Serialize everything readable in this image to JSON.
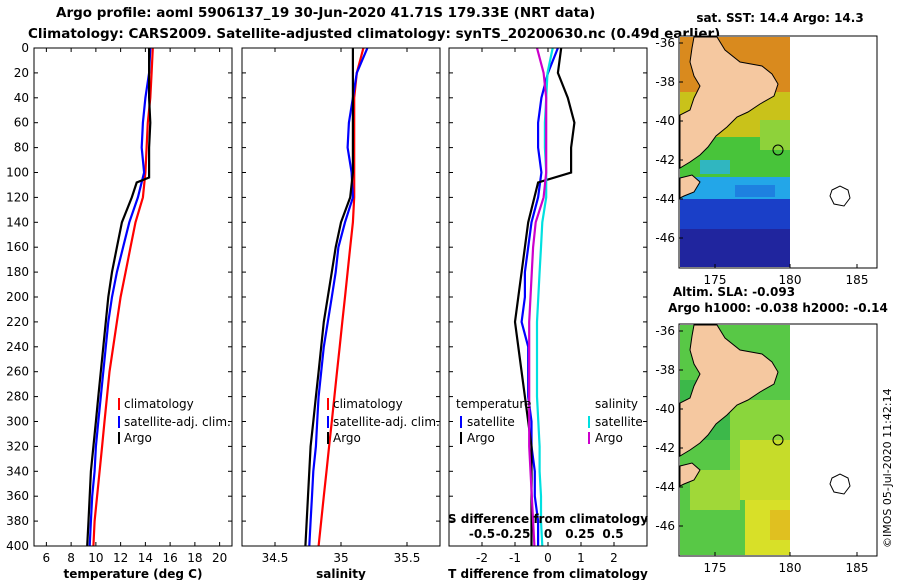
{
  "header": {
    "line1": "Argo profile: aoml 5906137_19 30-Jun-2020 41.71S 179.33E (NRT data)",
    "line2": "Climatology: CARS2009. Satellite-adjusted climatology: synTS_20200630.nc (0.49d earlier)"
  },
  "colors": {
    "climatology": "#ff0000",
    "satellite": "#0000ff",
    "argo": "#000000",
    "sal_satellite": "#00e0e0",
    "sal_argo": "#cc00cc",
    "land": "#f5c8a0"
  },
  "chart_data": [
    {
      "type": "line",
      "name": "temperature",
      "xlabel": "temperature (deg C)",
      "ylabel": "",
      "xlim": [
        5,
        21
      ],
      "ylim": [
        400,
        0
      ],
      "x_ticks": [
        6,
        8,
        10,
        12,
        14,
        16,
        18,
        20
      ],
      "y_ticks": [
        0,
        20,
        40,
        60,
        80,
        100,
        120,
        140,
        160,
        180,
        200,
        220,
        240,
        260,
        280,
        300,
        320,
        340,
        360,
        380,
        400
      ],
      "legend": [
        "climatology",
        "satellite-adj. clim.",
        "Argo"
      ],
      "legend_position": "lower-right",
      "series": [
        {
          "name": "climatology",
          "color": "#ff0000",
          "points": [
            [
              14.6,
              0
            ],
            [
              14.5,
              20
            ],
            [
              14.4,
              40
            ],
            [
              14.2,
              60
            ],
            [
              14.1,
              80
            ],
            [
              14.0,
              100
            ],
            [
              13.8,
              120
            ],
            [
              13.2,
              140
            ],
            [
              12.8,
              160
            ],
            [
              12.4,
              180
            ],
            [
              12.0,
              200
            ],
            [
              11.7,
              220
            ],
            [
              11.4,
              240
            ],
            [
              11.1,
              260
            ],
            [
              10.9,
              280
            ],
            [
              10.7,
              300
            ],
            [
              10.5,
              320
            ],
            [
              10.3,
              340
            ],
            [
              10.1,
              360
            ],
            [
              9.9,
              380
            ],
            [
              9.8,
              400
            ]
          ]
        },
        {
          "name": "satellite-adj. clim.",
          "color": "#0000ff",
          "points": [
            [
              14.4,
              0
            ],
            [
              14.3,
              20
            ],
            [
              14.0,
              40
            ],
            [
              13.8,
              60
            ],
            [
              13.7,
              80
            ],
            [
              13.9,
              100
            ],
            [
              13.4,
              120
            ],
            [
              12.7,
              140
            ],
            [
              12.2,
              160
            ],
            [
              11.7,
              180
            ],
            [
              11.3,
              200
            ],
            [
              11.0,
              220
            ],
            [
              10.8,
              240
            ],
            [
              10.6,
              260
            ],
            [
              10.4,
              280
            ],
            [
              10.2,
              300
            ],
            [
              10.0,
              320
            ],
            [
              9.9,
              340
            ],
            [
              9.7,
              360
            ],
            [
              9.6,
              380
            ],
            [
              9.5,
              400
            ]
          ]
        },
        {
          "name": "Argo",
          "color": "#000000",
          "points": [
            [
              14.3,
              0
            ],
            [
              14.3,
              20
            ],
            [
              14.3,
              40
            ],
            [
              14.4,
              60
            ],
            [
              14.3,
              80
            ],
            [
              14.3,
              104
            ],
            [
              13.3,
              108
            ],
            [
              12.9,
              120
            ],
            [
              12.1,
              140
            ],
            [
              11.7,
              160
            ],
            [
              11.3,
              180
            ],
            [
              11.0,
              200
            ],
            [
              10.8,
              220
            ],
            [
              10.6,
              240
            ],
            [
              10.4,
              260
            ],
            [
              10.2,
              280
            ],
            [
              10.0,
              300
            ],
            [
              9.8,
              320
            ],
            [
              9.6,
              340
            ],
            [
              9.5,
              360
            ],
            [
              9.4,
              380
            ],
            [
              9.3,
              400
            ]
          ]
        }
      ]
    },
    {
      "type": "line",
      "name": "salinity",
      "xlabel": "salinity",
      "ylabel": "",
      "xlim": [
        34.25,
        35.75
      ],
      "ylim": [
        400,
        0
      ],
      "x_ticks": [
        34.5,
        35,
        35.5
      ],
      "legend": [
        "climatology",
        "satellite-adj. clim.",
        "Argo"
      ],
      "legend_position": "lower-right",
      "series": [
        {
          "name": "climatology",
          "color": "#ff0000",
          "points": [
            [
              35.17,
              0
            ],
            [
              35.12,
              20
            ],
            [
              35.1,
              40
            ],
            [
              35.1,
              60
            ],
            [
              35.1,
              80
            ],
            [
              35.1,
              100
            ],
            [
              35.1,
              120
            ],
            [
              35.09,
              140
            ],
            [
              35.07,
              160
            ],
            [
              35.05,
              180
            ],
            [
              35.03,
              200
            ],
            [
              35.01,
              220
            ],
            [
              34.99,
              240
            ],
            [
              34.97,
              260
            ],
            [
              34.95,
              280
            ],
            [
              34.93,
              300
            ],
            [
              34.91,
              320
            ],
            [
              34.89,
              340
            ],
            [
              34.87,
              360
            ],
            [
              34.85,
              380
            ],
            [
              34.83,
              400
            ]
          ]
        },
        {
          "name": "satellite-adj. clim.",
          "color": "#0000ff",
          "points": [
            [
              35.2,
              0
            ],
            [
              35.12,
              20
            ],
            [
              35.09,
              40
            ],
            [
              35.06,
              60
            ],
            [
              35.05,
              80
            ],
            [
              35.08,
              100
            ],
            [
              35.09,
              120
            ],
            [
              35.03,
              140
            ],
            [
              34.98,
              160
            ],
            [
              34.96,
              180
            ],
            [
              34.93,
              200
            ],
            [
              34.9,
              220
            ],
            [
              34.87,
              240
            ],
            [
              34.85,
              260
            ],
            [
              34.83,
              280
            ],
            [
              34.82,
              300
            ],
            [
              34.81,
              320
            ],
            [
              34.79,
              340
            ],
            [
              34.78,
              360
            ],
            [
              34.77,
              380
            ],
            [
              34.76,
              400
            ]
          ]
        },
        {
          "name": "Argo",
          "color": "#000000",
          "points": [
            [
              35.09,
              0
            ],
            [
              35.09,
              20
            ],
            [
              35.09,
              40
            ],
            [
              35.09,
              60
            ],
            [
              35.09,
              80
            ],
            [
              35.09,
              100
            ],
            [
              35.07,
              120
            ],
            [
              35.0,
              140
            ],
            [
              34.96,
              160
            ],
            [
              34.93,
              180
            ],
            [
              34.9,
              200
            ],
            [
              34.87,
              220
            ],
            [
              34.85,
              240
            ],
            [
              34.83,
              260
            ],
            [
              34.81,
              280
            ],
            [
              34.79,
              300
            ],
            [
              34.77,
              320
            ],
            [
              34.76,
              340
            ],
            [
              34.75,
              360
            ],
            [
              34.74,
              380
            ],
            [
              34.73,
              400
            ]
          ]
        }
      ]
    },
    {
      "type": "line",
      "name": "difference",
      "xlabel": "T difference from climatology",
      "top_label": "S difference from climatology",
      "xlim": [
        -3,
        3
      ],
      "ylim": [
        400,
        0
      ],
      "x_ticks": [
        -2,
        -1,
        0,
        1,
        2
      ],
      "top_ticks": [
        "-0.5",
        "-0.25",
        "0",
        "0.25",
        "0.5"
      ],
      "legend_titles": [
        "temperature",
        "salinity"
      ],
      "legend": [
        "satellite",
        "Argo",
        "satellite",
        "Argo"
      ],
      "series": [
        {
          "name": "temperature satellite",
          "color": "#0000ff",
          "points": [
            [
              0.3,
              0
            ],
            [
              0.0,
              20
            ],
            [
              -0.2,
              40
            ],
            [
              -0.3,
              60
            ],
            [
              -0.3,
              80
            ],
            [
              -0.2,
              100
            ],
            [
              -0.3,
              120
            ],
            [
              -0.5,
              140
            ],
            [
              -0.6,
              160
            ],
            [
              -0.7,
              180
            ],
            [
              -0.7,
              200
            ],
            [
              -0.8,
              220
            ],
            [
              -0.6,
              240
            ],
            [
              -0.6,
              260
            ],
            [
              -0.6,
              280
            ],
            [
              -0.5,
              300
            ],
            [
              -0.5,
              320
            ],
            [
              -0.4,
              340
            ],
            [
              -0.4,
              360
            ],
            [
              -0.3,
              380
            ],
            [
              -0.3,
              400
            ]
          ]
        },
        {
          "name": "temperature Argo",
          "color": "#000000",
          "points": [
            [
              0.4,
              0
            ],
            [
              0.3,
              20
            ],
            [
              0.6,
              40
            ],
            [
              0.8,
              60
            ],
            [
              0.7,
              80
            ],
            [
              0.7,
              100
            ],
            [
              -0.3,
              108
            ],
            [
              -0.6,
              140
            ],
            [
              -0.7,
              160
            ],
            [
              -0.8,
              180
            ],
            [
              -0.9,
              200
            ],
            [
              -1.0,
              220
            ],
            [
              -0.9,
              240
            ],
            [
              -0.8,
              260
            ],
            [
              -0.7,
              280
            ],
            [
              -0.6,
              300
            ],
            [
              -0.5,
              320
            ],
            [
              -0.5,
              340
            ],
            [
              -0.5,
              360
            ],
            [
              -0.5,
              380
            ],
            [
              -0.5,
              400
            ]
          ]
        },
        {
          "name": "salinity satellite",
          "color": "#00e0e0",
          "points": [
            [
              0.04,
              0
            ],
            [
              0.0,
              20
            ],
            [
              -0.01,
              40
            ],
            [
              -0.02,
              60
            ],
            [
              -0.02,
              80
            ],
            [
              -0.01,
              100
            ],
            [
              -0.01,
              120
            ],
            [
              -0.04,
              140
            ],
            [
              -0.05,
              160
            ],
            [
              -0.06,
              180
            ],
            [
              -0.07,
              200
            ],
            [
              -0.08,
              220
            ],
            [
              -0.08,
              240
            ],
            [
              -0.08,
              260
            ],
            [
              -0.08,
              280
            ],
            [
              -0.07,
              300
            ],
            [
              -0.06,
              320
            ],
            [
              -0.06,
              340
            ],
            [
              -0.05,
              360
            ],
            [
              -0.05,
              380
            ],
            [
              -0.04,
              400
            ]
          ]
        },
        {
          "name": "salinity Argo",
          "color": "#cc00cc",
          "points": [
            [
              -0.08,
              0
            ],
            [
              -0.03,
              20
            ],
            [
              -0.01,
              40
            ],
            [
              -0.01,
              60
            ],
            [
              -0.01,
              80
            ],
            [
              -0.01,
              100
            ],
            [
              -0.03,
              120
            ],
            [
              -0.09,
              140
            ],
            [
              -0.11,
              160
            ],
            [
              -0.12,
              180
            ],
            [
              -0.13,
              200
            ],
            [
              -0.14,
              220
            ],
            [
              -0.14,
              240
            ],
            [
              -0.14,
              260
            ],
            [
              -0.14,
              280
            ],
            [
              -0.14,
              300
            ],
            [
              -0.14,
              320
            ],
            [
              -0.13,
              340
            ],
            [
              -0.12,
              360
            ],
            [
              -0.11,
              380
            ],
            [
              -0.1,
              400
            ]
          ]
        }
      ]
    }
  ],
  "maps": [
    {
      "title": "sat. SST: 14.4 Argo: 14.3",
      "y_ticks": [
        "-36",
        "-38",
        "-40",
        "-42",
        "-44",
        "-46"
      ],
      "x_ticks": [
        "175",
        "180",
        "185"
      ]
    },
    {
      "title1": "Altim. SLA: -0.093",
      "title2": "Argo h1000: -0.038 h2000: -0.14",
      "y_ticks": [
        "-36",
        "-38",
        "-40",
        "-42",
        "-44",
        "-46"
      ],
      "x_ticks": [
        "175",
        "180",
        "185"
      ]
    }
  ],
  "footer": {
    "stamp": "©IMOS 05-Jul-2020 11:42:14"
  }
}
